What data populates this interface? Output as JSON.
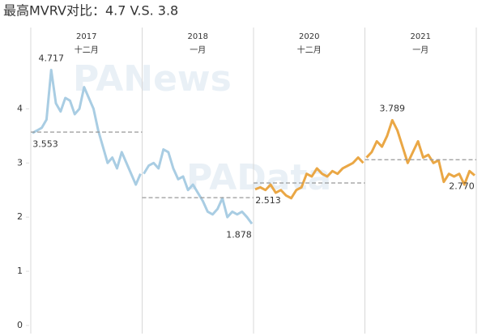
{
  "chart_data": {
    "type": "line",
    "title": "最高MVRV对比：4.7 V.S. 3.8",
    "ylim": [
      0,
      5.5
    ],
    "yticks": [
      0,
      1,
      2,
      3,
      4
    ],
    "watermarks": [
      "PANews",
      "PAData"
    ],
    "panels": [
      {
        "year": "2017",
        "month": "十二月",
        "color": "#a9cde3",
        "average": 3.57,
        "values": [
          3.553,
          3.6,
          3.65,
          3.8,
          4.717,
          4.1,
          3.95,
          4.2,
          4.15,
          3.9,
          4.0,
          4.4,
          4.2,
          4.0,
          3.6,
          3.3,
          3.0,
          3.1,
          2.9,
          3.2,
          3.0,
          2.8,
          2.6,
          2.8
        ],
        "annotations": [
          4.717,
          3.553
        ]
      },
      {
        "year": "2018",
        "month": "一月",
        "color": "#a9cde3",
        "average": 2.36,
        "values": [
          2.8,
          2.95,
          3.0,
          2.9,
          3.25,
          3.2,
          2.9,
          2.7,
          2.75,
          2.5,
          2.6,
          2.45,
          2.3,
          2.1,
          2.05,
          2.15,
          2.35,
          2.0,
          2.1,
          2.05,
          2.1,
          2.0,
          1.878
        ],
        "annotations": [
          1.878
        ]
      },
      {
        "year": "2020",
        "month": "十二月",
        "color": "#eaa745",
        "average": 2.63,
        "values": [
          2.513,
          2.55,
          2.5,
          2.6,
          2.45,
          2.5,
          2.4,
          2.35,
          2.5,
          2.55,
          2.8,
          2.75,
          2.9,
          2.8,
          2.75,
          2.85,
          2.8,
          2.9,
          2.95,
          3.0,
          3.1,
          3.0
        ],
        "annotations": [
          2.513
        ]
      },
      {
        "year": "2021",
        "month": "一月",
        "color": "#eaa745",
        "average": 3.06,
        "values": [
          3.1,
          3.2,
          3.4,
          3.3,
          3.5,
          3.789,
          3.6,
          3.3,
          3.0,
          3.2,
          3.4,
          3.1,
          3.15,
          3.0,
          3.05,
          2.65,
          2.8,
          2.75,
          2.8,
          2.6,
          2.85,
          2.77
        ],
        "annotations": [
          3.789,
          {
            "value": 2.77,
            "label": "2.770"
          }
        ]
      }
    ]
  }
}
